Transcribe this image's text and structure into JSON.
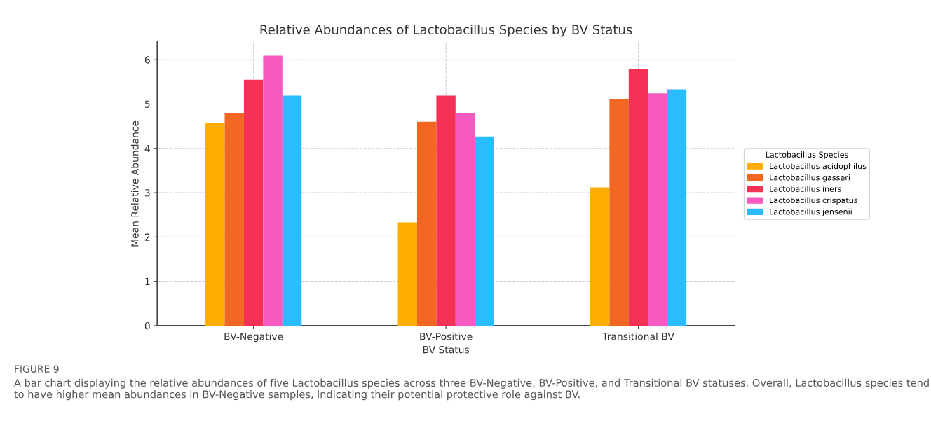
{
  "chart_data": {
    "type": "bar",
    "title": "Relative Abundances of Lactobacillus Species by BV Status",
    "xlabel": "BV Status",
    "ylabel": "Mean Relative Abundance",
    "legend_title": "Lactobacillus Species",
    "categories": [
      "BV-Negative",
      "BV-Positive",
      "Transitional BV"
    ],
    "series": [
      {
        "name": "Lactobacillus acidophilus",
        "color": "#ffad00",
        "values": [
          4.57,
          2.33,
          3.12
        ]
      },
      {
        "name": "Lactobacillus gasseri",
        "color": "#f26722",
        "values": [
          4.79,
          4.6,
          5.12
        ]
      },
      {
        "name": "Lactobacillus iners",
        "color": "#f53255",
        "values": [
          5.55,
          5.19,
          5.79
        ]
      },
      {
        "name": "Lactobacillus crispatus",
        "color": "#f95abf",
        "values": [
          6.09,
          4.8,
          5.24
        ]
      },
      {
        "name": "Lactobacillus jensenii",
        "color": "#29bdfd",
        "values": [
          5.19,
          4.27,
          5.33
        ]
      }
    ],
    "ylim": [
      0,
      6.4
    ],
    "yticks": [
      0,
      1,
      2,
      3,
      4,
      5,
      6
    ],
    "grid": true,
    "legend": "right",
    "annotations": [
      "FIGURE 9",
      "A bar chart displaying the relative abundances of five Lactobacillus species across three BV-Negative, BV-Positive, and Transitional BV statuses. Overall, Lactobacillus species tend to have higher mean abundances in BV-Negative samples, indicating their potential protective role against BV."
    ]
  }
}
